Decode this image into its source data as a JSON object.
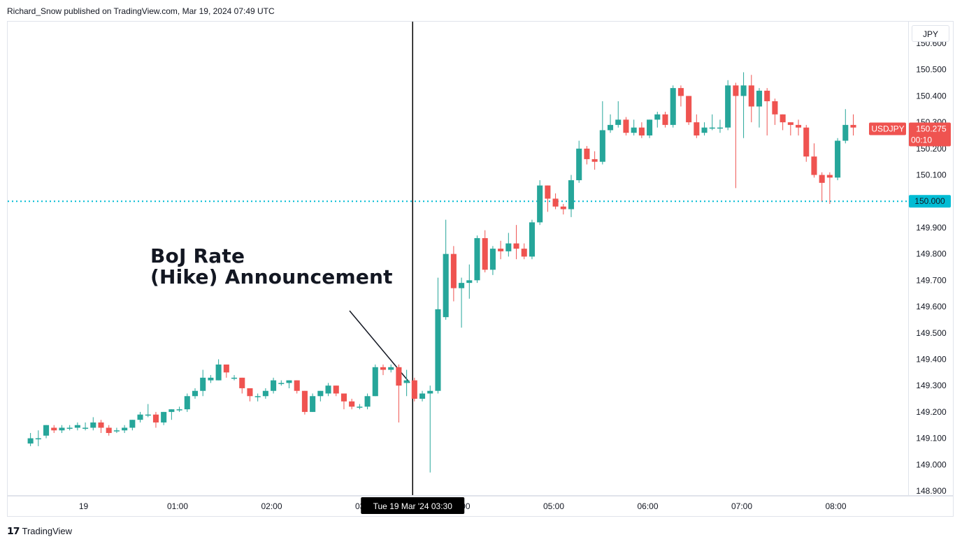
{
  "header": {
    "published_text": "Richard_Snow published on TradingView.com, Mar 19, 2024 07:49 UTC"
  },
  "currency": "JPY",
  "annotation": {
    "line1": "BoJ Rate",
    "line2": "(Hike) Announcement"
  },
  "crosshair_label": "Tue 19 Mar '24   03:30",
  "footer": {
    "brand": "TradingView",
    "logo": "tv-logo-icon"
  },
  "colors": {
    "up": "#26a69a",
    "down": "#ef5350",
    "level": "#00bcd4",
    "last_price_bg": "#ef5350",
    "level_bg": "#00bcd4"
  },
  "chart_data": {
    "type": "candlestick",
    "symbol": "USDJPY",
    "last_price": "150.275",
    "countdown": "00:10",
    "level_line": {
      "value": 150.0,
      "label": "150.000",
      "style": "dotted"
    },
    "crosshair_time": "03:30",
    "y_ticks": [
      "148.900",
      "149.000",
      "149.100",
      "149.200",
      "149.300",
      "149.400",
      "149.500",
      "149.600",
      "149.700",
      "149.800",
      "149.900",
      "150.100",
      "150.200",
      "150.300",
      "150.400",
      "150.500",
      "150.600"
    ],
    "ylim": [
      148.89,
      150.66
    ],
    "x_ticks": [
      {
        "label": "19",
        "t": -0.0
      },
      {
        "label": "01:00",
        "t": 1.0
      },
      {
        "label": "02:00",
        "t": 2.0
      },
      {
        "label": "03:00",
        "t": 3.0
      },
      {
        "label": "04:00",
        "t": 4.0
      },
      {
        "label": "05:00",
        "t": 5.0
      },
      {
        "label": "06:00",
        "t": 6.0
      },
      {
        "label": "07:00",
        "t": 7.0
      },
      {
        "label": "08:00",
        "t": 8.0
      }
    ],
    "x_start_hours": -0.75,
    "candle_interval_minutes": 5,
    "candles": [
      [
        149.08,
        149.1,
        149.07,
        149.12
      ],
      [
        149.1,
        149.1,
        149.07,
        149.13
      ],
      [
        149.11,
        149.15,
        149.1,
        149.15
      ],
      [
        149.14,
        149.13,
        149.12,
        149.15
      ],
      [
        149.13,
        149.14,
        149.12,
        149.15
      ],
      [
        149.14,
        149.14,
        149.13,
        149.15
      ],
      [
        149.14,
        149.15,
        149.13,
        149.16
      ],
      [
        149.14,
        149.14,
        149.13,
        149.16
      ],
      [
        149.14,
        149.16,
        149.13,
        149.18
      ],
      [
        149.16,
        149.14,
        149.12,
        149.17
      ],
      [
        149.14,
        149.12,
        149.11,
        149.15
      ],
      [
        149.13,
        149.13,
        149.12,
        149.14
      ],
      [
        149.13,
        149.14,
        149.12,
        149.15
      ],
      [
        149.14,
        149.17,
        149.13,
        149.17
      ],
      [
        149.17,
        149.19,
        149.16,
        149.2
      ],
      [
        149.19,
        149.19,
        149.18,
        149.23
      ],
      [
        149.19,
        149.16,
        149.14,
        149.2
      ],
      [
        149.16,
        149.2,
        149.15,
        149.2
      ],
      [
        149.2,
        149.21,
        149.17,
        149.21
      ],
      [
        149.21,
        149.21,
        149.2,
        149.22
      ],
      [
        149.21,
        149.26,
        149.2,
        149.27
      ],
      [
        149.26,
        149.28,
        149.25,
        149.29
      ],
      [
        149.28,
        149.33,
        149.26,
        149.36
      ],
      [
        149.32,
        149.33,
        149.31,
        149.34
      ],
      [
        149.32,
        149.38,
        149.32,
        149.4
      ],
      [
        149.38,
        149.35,
        149.33,
        149.38
      ],
      [
        149.33,
        149.33,
        149.32,
        149.34
      ],
      [
        149.33,
        149.29,
        149.27,
        149.33
      ],
      [
        149.29,
        149.26,
        149.24,
        149.29
      ],
      [
        149.26,
        149.26,
        149.24,
        149.27
      ],
      [
        149.26,
        149.28,
        149.25,
        149.29
      ],
      [
        149.28,
        149.32,
        149.27,
        149.33
      ],
      [
        149.31,
        149.31,
        149.3,
        149.32
      ],
      [
        149.31,
        149.32,
        149.29,
        149.32
      ],
      [
        149.32,
        149.28,
        149.27,
        149.32
      ],
      [
        149.28,
        149.2,
        149.19,
        149.28
      ],
      [
        149.2,
        149.26,
        149.2,
        149.27
      ],
      [
        149.26,
        149.28,
        149.24,
        149.28
      ],
      [
        149.27,
        149.3,
        149.26,
        149.31
      ],
      [
        149.3,
        149.27,
        149.26,
        149.3
      ],
      [
        149.27,
        149.24,
        149.21,
        149.27
      ],
      [
        149.24,
        149.22,
        149.21,
        149.25
      ],
      [
        149.22,
        149.22,
        149.21,
        149.23
      ],
      [
        149.22,
        149.26,
        149.21,
        149.27
      ],
      [
        149.26,
        149.37,
        149.26,
        149.38
      ],
      [
        149.37,
        149.36,
        149.34,
        149.38
      ],
      [
        149.36,
        149.37,
        149.35,
        149.38
      ],
      [
        149.37,
        149.3,
        149.16,
        149.38
      ],
      [
        149.31,
        149.32,
        149.26,
        149.36
      ],
      [
        149.32,
        149.25,
        149.24,
        149.33
      ],
      [
        149.25,
        149.27,
        149.24,
        149.28
      ],
      [
        149.27,
        149.28,
        148.97,
        149.3
      ],
      [
        149.28,
        149.59,
        149.27,
        149.71
      ],
      [
        149.56,
        149.8,
        149.55,
        149.93
      ],
      [
        149.8,
        149.67,
        149.62,
        149.83
      ],
      [
        149.67,
        149.69,
        149.52,
        149.71
      ],
      [
        149.69,
        149.7,
        149.63,
        149.76
      ],
      [
        149.7,
        149.86,
        149.69,
        149.87
      ],
      [
        149.86,
        149.74,
        149.73,
        149.89
      ],
      [
        149.74,
        149.82,
        149.72,
        149.83
      ],
      [
        149.82,
        149.81,
        149.78,
        149.85
      ],
      [
        149.81,
        149.84,
        149.79,
        149.88
      ],
      [
        149.84,
        149.82,
        149.78,
        149.91
      ],
      [
        149.82,
        149.79,
        149.78,
        149.84
      ],
      [
        149.79,
        149.92,
        149.78,
        149.93
      ],
      [
        149.92,
        150.06,
        149.91,
        150.08
      ],
      [
        150.06,
        150.01,
        149.96,
        150.06
      ],
      [
        150.01,
        149.98,
        149.97,
        150.03
      ],
      [
        149.98,
        149.97,
        149.95,
        149.99
      ],
      [
        149.97,
        150.08,
        149.94,
        150.1
      ],
      [
        150.08,
        150.2,
        150.07,
        150.23
      ],
      [
        150.2,
        150.16,
        150.14,
        150.21
      ],
      [
        150.16,
        150.15,
        150.12,
        150.19
      ],
      [
        150.15,
        150.27,
        150.14,
        150.38
      ],
      [
        150.27,
        150.29,
        150.26,
        150.33
      ],
      [
        150.29,
        150.31,
        150.28,
        150.38
      ],
      [
        150.31,
        150.26,
        150.25,
        150.32
      ],
      [
        150.26,
        150.28,
        150.25,
        150.31
      ],
      [
        150.28,
        150.25,
        150.24,
        150.3
      ],
      [
        150.25,
        150.31,
        150.24,
        150.31
      ],
      [
        150.31,
        150.33,
        150.28,
        150.34
      ],
      [
        150.33,
        150.29,
        150.28,
        150.34
      ],
      [
        150.29,
        150.43,
        150.28,
        150.44
      ],
      [
        150.43,
        150.4,
        150.36,
        150.44
      ],
      [
        150.4,
        150.3,
        150.29,
        150.4
      ],
      [
        150.3,
        150.25,
        150.24,
        150.33
      ],
      [
        150.26,
        150.28,
        150.25,
        150.3
      ],
      [
        150.28,
        150.28,
        150.27,
        150.33
      ],
      [
        150.28,
        150.28,
        150.26,
        150.31
      ],
      [
        150.28,
        150.44,
        150.27,
        150.46
      ],
      [
        150.44,
        150.4,
        150.05,
        150.45
      ],
      [
        150.4,
        150.44,
        150.24,
        150.49
      ],
      [
        150.44,
        150.36,
        150.3,
        150.48
      ],
      [
        150.36,
        150.42,
        150.28,
        150.43
      ],
      [
        150.42,
        150.38,
        150.25,
        150.43
      ],
      [
        150.38,
        150.33,
        150.29,
        150.39
      ],
      [
        150.33,
        150.3,
        150.27,
        150.33
      ],
      [
        150.3,
        150.29,
        150.25,
        150.3
      ],
      [
        150.29,
        150.28,
        150.25,
        150.31
      ],
      [
        150.28,
        150.17,
        150.15,
        150.29
      ],
      [
        150.17,
        150.1,
        150.09,
        150.22
      ],
      [
        150.1,
        150.07,
        150.0,
        150.11
      ],
      [
        150.1,
        150.09,
        149.99,
        150.11
      ],
      [
        150.09,
        150.23,
        150.08,
        150.24
      ],
      [
        150.23,
        150.29,
        150.22,
        150.35
      ],
      [
        150.29,
        150.28,
        150.25,
        150.33
      ]
    ]
  }
}
